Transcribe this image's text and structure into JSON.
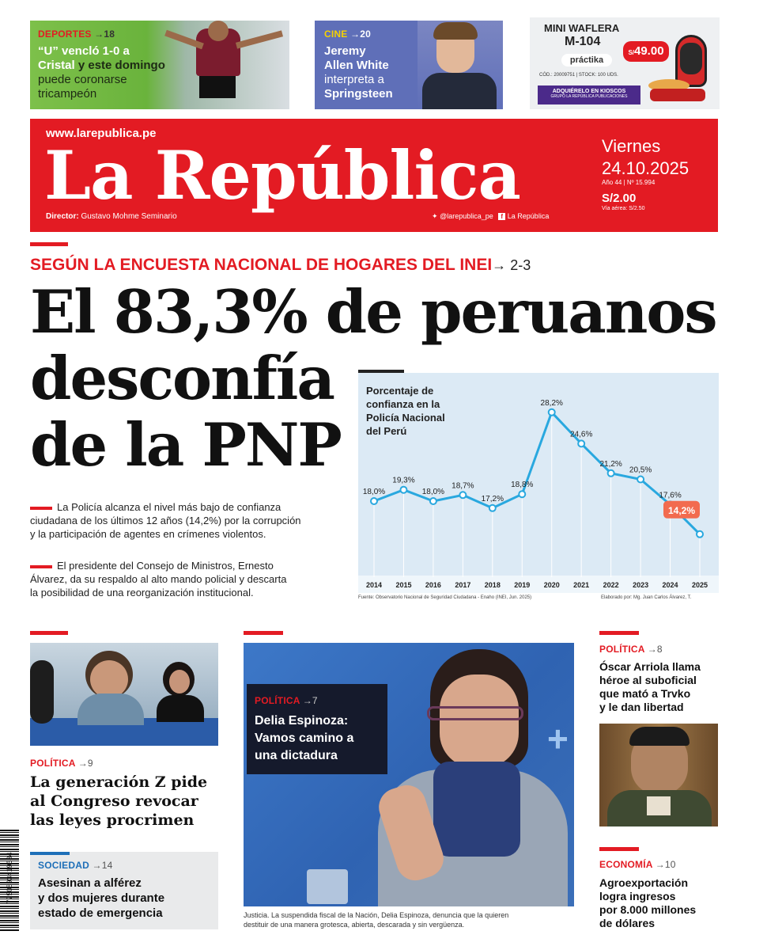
{
  "promos": [
    {
      "section": "DEPORTES",
      "page": "18",
      "headline_1": "“U” vencló 1-0 a",
      "headline_2": "Cristal",
      "headline_3": "y este domingo",
      "headline_4": "puede coronarse",
      "headline_5": "tricampeón"
    },
    {
      "section": "CINE",
      "page": "20",
      "headline_1": "Jeremy",
      "headline_2": "Allen White",
      "headline_3": "interpreta a",
      "headline_4": "Springsteen"
    },
    {
      "ad_title_1": "MINI WAFLERA",
      "ad_title_2": "M-104",
      "brand": "práctika",
      "price": "49.00",
      "price_symbol": "S/",
      "code_line": "CÓD.: 20009751 | STOCK: 100 UDS.",
      "cta": "ADQUIÉRELO EN KIOSCOS",
      "cta_sub": "GRUPO LA REPÚBLICA PUBLICACIONES"
    }
  ],
  "masthead": {
    "url": "www.larepublica.pe",
    "title": "La República",
    "day": "Viernes",
    "date": "24.10.2025",
    "issue": "Año 44 | Nº 15.994",
    "price": "S/2.00",
    "air_price": "Vía aérea: S/2.50",
    "director_label": "Director:",
    "director_name": "Gustavo Mohme Seminario",
    "social_twitter": "@larepublica_pe",
    "social_facebook": "La República"
  },
  "lead": {
    "kicker": "SEGÚN LA ENCUESTA NACIONAL DE HOGARES DEL INEI",
    "kicker_pages": "2-3",
    "headline_1": "El 83,3% de peruanos",
    "headline_2": "desconfía",
    "headline_3": "de la PNP",
    "bullet_1_l1": "La Policía alcanza el nivel más bajo de confianza",
    "bullet_1_l2": "ciudadana de los últimos 12 años (14,2%) por la corrupción",
    "bullet_1_l3": "y la participación de agentes en crímenes violentos.",
    "bullet_2_l1": "El presidente del Consejo de Ministros, Ernesto",
    "bullet_2_l2": "Álvarez, da su respaldo al alto mando policial y descarta",
    "bullet_2_l3": "la posibilidad de una reorganización institucional."
  },
  "chart_data": {
    "type": "line",
    "title_1": "Porcentaje de",
    "title_2": "confianza en la",
    "title_3": "Policía Nacional",
    "title_4": "del Perú",
    "x": [
      "2014",
      "2015",
      "2016",
      "2017",
      "2018",
      "2019",
      "2020",
      "2021",
      "2022",
      "2023",
      "2024",
      "2025"
    ],
    "values": [
      18.0,
      19.3,
      18.0,
      18.7,
      17.2,
      18.8,
      28.2,
      24.6,
      21.2,
      20.5,
      17.6,
      14.2
    ],
    "labels": [
      "18,0%",
      "19,3%",
      "18,0%",
      "18,7%",
      "17,2%",
      "18,8%",
      "28,2%",
      "24,6%",
      "21,2%",
      "20,5%",
      "17,6%",
      "14,2%"
    ],
    "highlight_index": 11,
    "ylim": [
      12,
      30
    ],
    "source": "Fuente: Observatorio Nacional de Seguridad Ciudadana - Enaho (INEI, Jun. 2025)",
    "credit": "Elaborado por: Mg. Juan Carlos Álvarez, T."
  },
  "stories": {
    "genz": {
      "section": "POLÍTICA",
      "page": "9",
      "h1": "La generación Z pide",
      "h2": "al Congreso revocar",
      "h3": "las leyes procrimen"
    },
    "sociedad": {
      "section": "SOCIEDAD",
      "page": "14",
      "h1": "Asesinan a alférez",
      "h2": "y dos mujeres durante",
      "h3": "estado de emergencia"
    },
    "delia": {
      "section": "POLÍTICA",
      "page": "7",
      "h1": "Delia Espinoza:",
      "h2": "Vamos camino a",
      "h3": "una dictadura",
      "caption_1": "Justicia. La suspendida fiscal de la Nación, Delia Espinoza, denuncia que la quieren",
      "caption_2": "destituir de una manera grotesca, abierta, descarada y sin vergüenza."
    },
    "arriola": {
      "section": "POLÍTICA",
      "page": "8",
      "h1": "Óscar Arriola llama",
      "h2": "héroe al suboficial",
      "h3": "que mató a Trvko",
      "h4": "y le dan libertad"
    },
    "economia": {
      "section": "ECONOMÍA",
      "page": "10",
      "h1": "Agroexportación",
      "h2": "logra ingresos",
      "h3": "por 8.000 millones",
      "h4": "de dólares"
    }
  },
  "barcode_number": "7750893419634",
  "colors": {
    "brand_red": "#e31b23",
    "chart_line": "#29a8df",
    "chart_bg": "#dceaf5",
    "highlight": "#f26b4f"
  }
}
